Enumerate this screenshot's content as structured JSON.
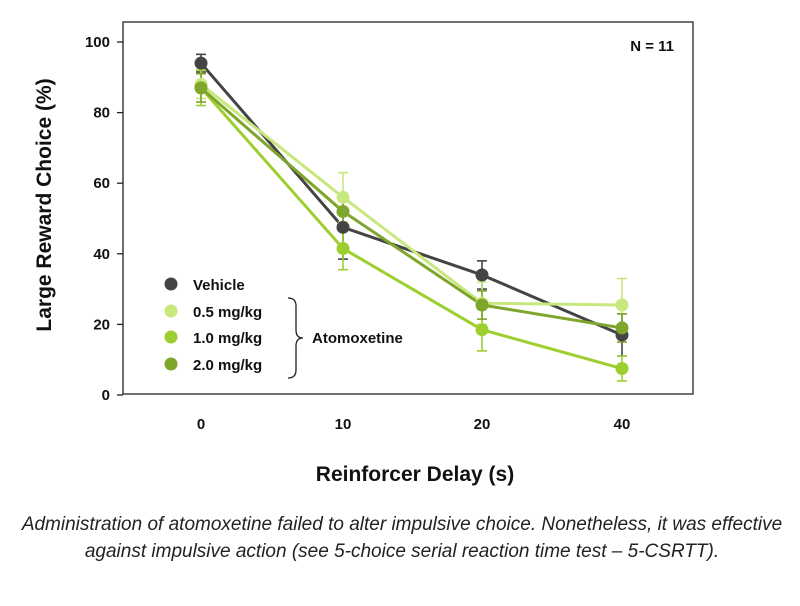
{
  "chart_data": {
    "type": "line",
    "xlabel": "Reinforcer Delay (s)",
    "ylabel": "Large Reward Choice (%)",
    "annotation": "N = 11",
    "x": [
      0,
      10,
      20,
      40
    ],
    "x_tick_labels": [
      "0",
      "10",
      "20",
      "40"
    ],
    "y_ticks": [
      0,
      20,
      40,
      60,
      80,
      100
    ],
    "ylim": [
      0,
      100
    ],
    "grid": false,
    "legend_position": "bottom-left",
    "legend_group_label": "Atomoxetine",
    "series": [
      {
        "name": "Vehicle",
        "color": "#444444",
        "values": [
          94,
          47.5,
          34,
          17
        ],
        "errors": [
          2.5,
          9,
          4,
          6
        ]
      },
      {
        "name": "0.5 mg/kg",
        "color": "#c8e87e",
        "values": [
          88,
          56,
          26,
          25.5
        ],
        "errors": [
          4,
          7,
          6,
          7.5
        ]
      },
      {
        "name": "1.0 mg/kg",
        "color": "#9ccf2f",
        "values": [
          87,
          41.5,
          18.5,
          7.5
        ],
        "errors": [
          5,
          6,
          6,
          3.5
        ]
      },
      {
        "name": "2.0 mg/kg",
        "color": "#7ea52c",
        "values": [
          87,
          52,
          25.5,
          19
        ],
        "errors": [
          4,
          5,
          4,
          4
        ]
      }
    ]
  },
  "caption": "Administration of atomoxetine failed to alter impulsive choice. Nonetheless, it was effective against impulsive action (see 5-choice serial reaction time test – 5-CSRTT)."
}
